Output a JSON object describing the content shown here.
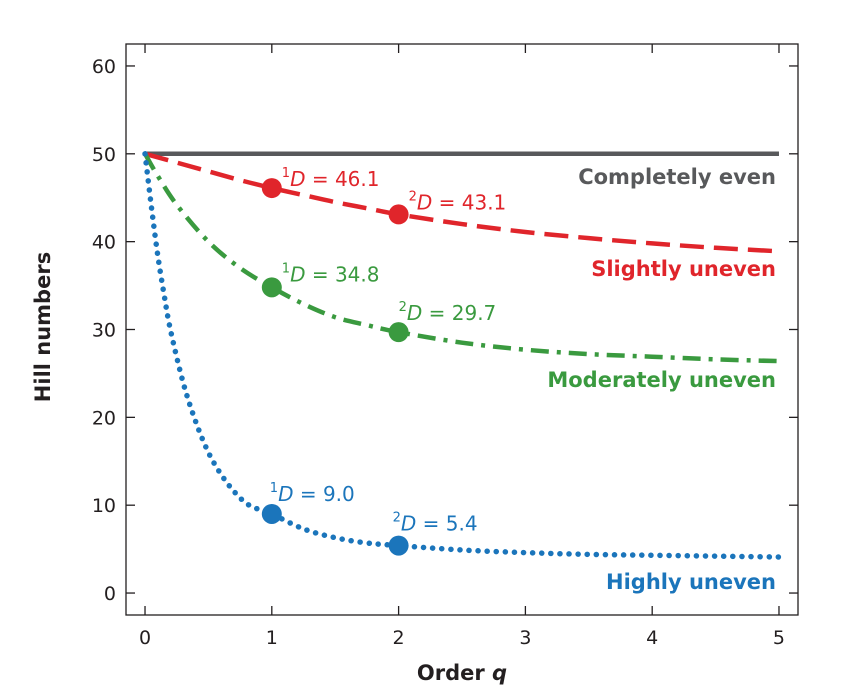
{
  "chart_data": {
    "type": "line",
    "xlabel": "Order",
    "xlabel_var": "q",
    "ylabel": "Hill numbers",
    "xlim": [
      -0.15,
      5.15
    ],
    "ylim": [
      -2.5,
      62.5
    ],
    "xticks": [
      "0",
      "1",
      "2",
      "3",
      "4",
      "5"
    ],
    "yticks": [
      "0",
      "10",
      "20",
      "30",
      "40",
      "50",
      "60"
    ],
    "grid": false,
    "legend": "none",
    "series": [
      {
        "name": "Completely even",
        "color": "#58595b",
        "style": "solid",
        "x": [
          0,
          0.5,
          1,
          1.5,
          2,
          2.5,
          3,
          3.5,
          4,
          4.5,
          5
        ],
        "y": [
          50,
          50,
          50,
          50,
          50,
          50,
          50,
          50,
          50,
          50,
          50
        ],
        "markers": []
      },
      {
        "name": "Slightly uneven",
        "color": "#e0252b",
        "style": "dashed",
        "x": [
          0,
          0.25,
          0.5,
          0.75,
          1,
          1.25,
          1.5,
          1.75,
          2,
          2.5,
          3,
          3.5,
          4,
          4.5,
          5
        ],
        "y": [
          50,
          49.0,
          48.0,
          47.0,
          46.1,
          45.3,
          44.5,
          43.8,
          43.1,
          42.0,
          41.1,
          40.4,
          39.8,
          39.3,
          38.9
        ],
        "markers": [
          {
            "x": 1,
            "y": 46.1,
            "order": "1",
            "text": "D = 46.1"
          },
          {
            "x": 2,
            "y": 43.1,
            "order": "2",
            "text": "D = 43.1"
          }
        ]
      },
      {
        "name": "Moderately uneven",
        "color": "#3a9a3f",
        "style": "dashdot",
        "x": [
          0,
          0.1,
          0.25,
          0.5,
          0.75,
          1,
          1.25,
          1.5,
          1.75,
          2,
          2.5,
          3,
          3.5,
          4,
          4.5,
          5
        ],
        "y": [
          50,
          47.5,
          44.2,
          40.0,
          37.0,
          34.8,
          32.9,
          31.4,
          30.5,
          29.7,
          28.5,
          27.7,
          27.2,
          26.9,
          26.6,
          26.4
        ],
        "markers": [
          {
            "x": 1,
            "y": 34.8,
            "order": "1",
            "text": "D = 34.8"
          },
          {
            "x": 2,
            "y": 29.7,
            "order": "2",
            "text": "D = 29.7"
          }
        ]
      },
      {
        "name": "Highly uneven",
        "color": "#1b75bb",
        "style": "dotted",
        "x": [
          0,
          0.05,
          0.1,
          0.15,
          0.2,
          0.3,
          0.4,
          0.5,
          0.6,
          0.7,
          0.8,
          0.9,
          1,
          1.25,
          1.5,
          1.75,
          2,
          2.5,
          3,
          3.5,
          4,
          4.5,
          5
        ],
        "y": [
          50,
          44.0,
          38.5,
          34.0,
          30.0,
          24.0,
          19.5,
          16.0,
          13.5,
          11.6,
          10.2,
          9.5,
          9.0,
          7.3,
          6.3,
          5.7,
          5.4,
          4.9,
          4.6,
          4.4,
          4.3,
          4.2,
          4.1
        ],
        "markers": [
          {
            "x": 1,
            "y": 9.0,
            "order": "1",
            "text": "D = 9.0"
          },
          {
            "x": 2,
            "y": 5.4,
            "order": "2",
            "text": "D = 5.4"
          }
        ]
      }
    ]
  }
}
